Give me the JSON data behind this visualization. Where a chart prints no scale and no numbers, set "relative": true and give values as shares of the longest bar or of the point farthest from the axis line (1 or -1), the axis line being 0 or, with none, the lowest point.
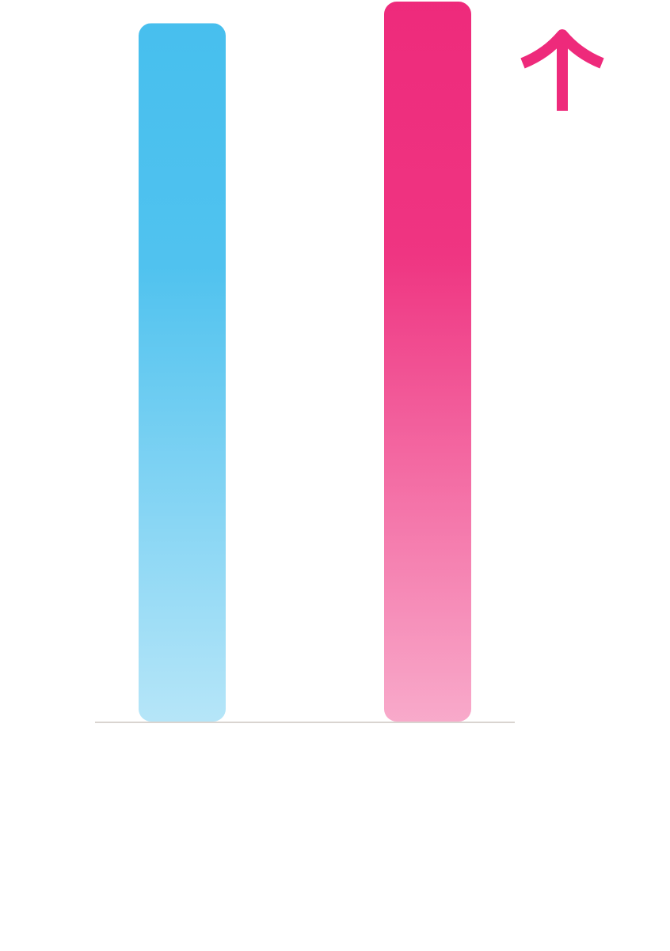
{
  "chart_data": {
    "type": "bar",
    "relative": true,
    "categories": [
      null,
      null
    ],
    "values": [
      0.97,
      1
    ],
    "colors": [
      "#47bfee",
      "#ee2a7b"
    ]
  }
}
